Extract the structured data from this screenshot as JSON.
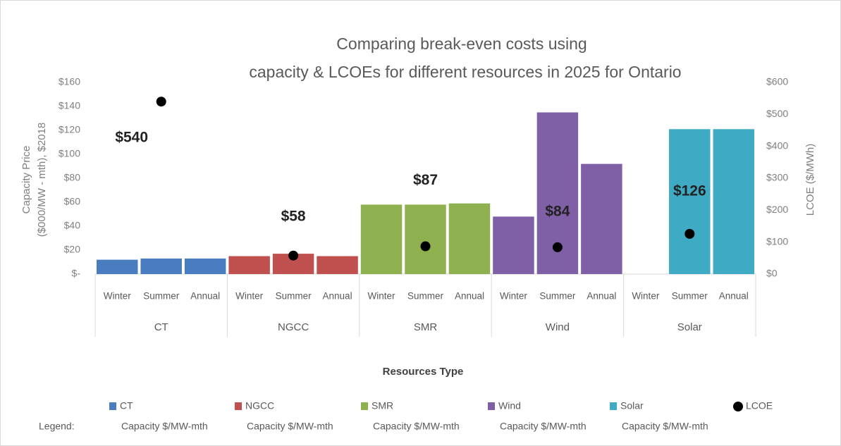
{
  "chart_data": {
    "type": "bar",
    "title": [
      "Comparing break-even costs using",
      "capacity & LCOEs for different resources in 2025 for Ontario"
    ],
    "ylabel": [
      "Capacity Price",
      "($000/MW - mth), $2018"
    ],
    "y2label": "LCOE ($/MWh)",
    "xlabel": "Resources Type",
    "legend_title": "Legend:",
    "legend_sublabel": "Capacity $/MW-mth",
    "subcategories": [
      "Winter",
      "Summer",
      "Annual"
    ],
    "series": [
      {
        "name": "CT",
        "color": "#4a7cc0",
        "values": [
          12,
          13,
          13
        ]
      },
      {
        "name": "NGCC",
        "color": "#c0504d",
        "values": [
          15,
          17,
          15
        ]
      },
      {
        "name": "SMR",
        "color": "#8fb04f",
        "values": [
          58,
          58,
          59
        ]
      },
      {
        "name": "Wind",
        "color": "#7f5fa5",
        "values": [
          48,
          135,
          92
        ]
      },
      {
        "name": "Solar",
        "color": "#3eaac4",
        "values": [
          0,
          121,
          121
        ]
      }
    ],
    "lcoe": {
      "name": "LCOE",
      "color": "#000000",
      "axis": "y2",
      "values": [
        540,
        58,
        87,
        84,
        126
      ],
      "value_labels": [
        "$540",
        "$58",
        "$87",
        "$84",
        "$126"
      ]
    },
    "ylim": [
      0,
      160
    ],
    "yticks": [
      {
        "value": 0,
        "label": "$-"
      },
      {
        "value": 20,
        "label": "$20"
      },
      {
        "value": 40,
        "label": "$40"
      },
      {
        "value": 60,
        "label": "$60"
      },
      {
        "value": 80,
        "label": "$80"
      },
      {
        "value": 100,
        "label": "$100"
      },
      {
        "value": 120,
        "label": "$120"
      },
      {
        "value": 140,
        "label": "$140"
      },
      {
        "value": 160,
        "label": "$160"
      }
    ],
    "y2lim": [
      0,
      600
    ],
    "y2ticks": [
      {
        "value": 0,
        "label": "$0"
      },
      {
        "value": 100,
        "label": "$100"
      },
      {
        "value": 200,
        "label": "$200"
      },
      {
        "value": 300,
        "label": "$300"
      },
      {
        "value": 400,
        "label": "$400"
      },
      {
        "value": 500,
        "label": "$500"
      },
      {
        "value": 600,
        "label": "$600"
      }
    ]
  }
}
